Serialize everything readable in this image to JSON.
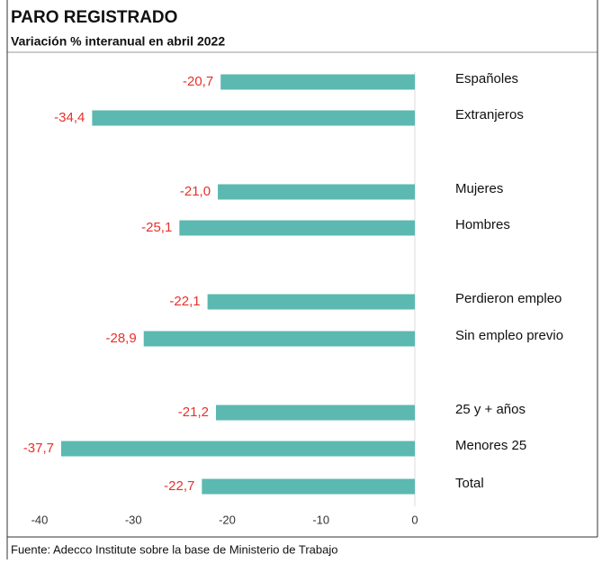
{
  "chart_data": {
    "type": "barh",
    "title": "PARO REGISTRADO",
    "subtitle": "Variación % interanual en abril 2022",
    "source": "Fuente: Adecco Institute sobre la base de Ministerio de Trabajo",
    "categories": [
      "Españoles",
      "Extranjeros",
      "Mujeres",
      "Hombres",
      "Perdieron empleo",
      "Sin empleo previo",
      "25 y + años",
      "Menores 25",
      "Total"
    ],
    "values": [
      -20.7,
      -34.4,
      -21.0,
      -25.1,
      -22.1,
      -28.9,
      -21.2,
      -37.7,
      -22.7
    ],
    "value_labels": [
      "-20,7",
      "-34,4",
      "-21,0",
      "-25,1",
      "-22,1",
      "-28,9",
      "-21,2",
      "-37,7",
      "-22,7"
    ],
    "color": "#5bb9b1",
    "label_color": "#e8302a",
    "xlim": [
      -40,
      0
    ],
    "xticks": [
      -40,
      -30,
      -20,
      -10,
      0
    ]
  }
}
